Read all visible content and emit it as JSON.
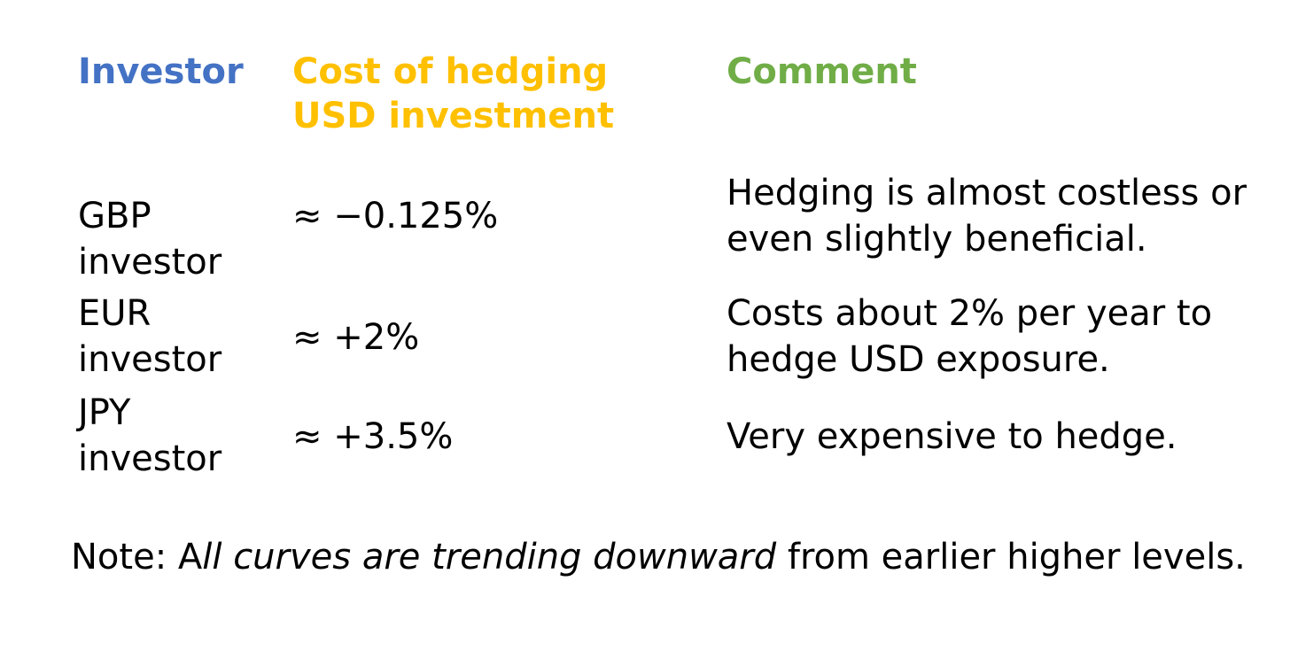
{
  "headers": {
    "investor": "Investor",
    "cost": "Cost of hedging USD investment",
    "comment": "Comment"
  },
  "rows": [
    {
      "investor": "GBP investor",
      "cost": "≈ −0.125%",
      "comment": "Hedging is almost costless or even slightly beneficial."
    },
    {
      "investor": "EUR investor",
      "cost": "≈ +2%",
      "comment": "Costs about 2% per year to hedge USD exposure."
    },
    {
      "investor": "JPY investor",
      "cost": "≈ +3.5%",
      "comment": "Very expensive to hedge."
    }
  ],
  "note": {
    "prefix": "Note: A",
    "italic": "ll curves are trending downward",
    "suffix": " from earlier higher levels."
  },
  "colors": {
    "investor_header": "#4472c4",
    "cost_header": "#ffc000",
    "comment_header": "#70ad47"
  }
}
